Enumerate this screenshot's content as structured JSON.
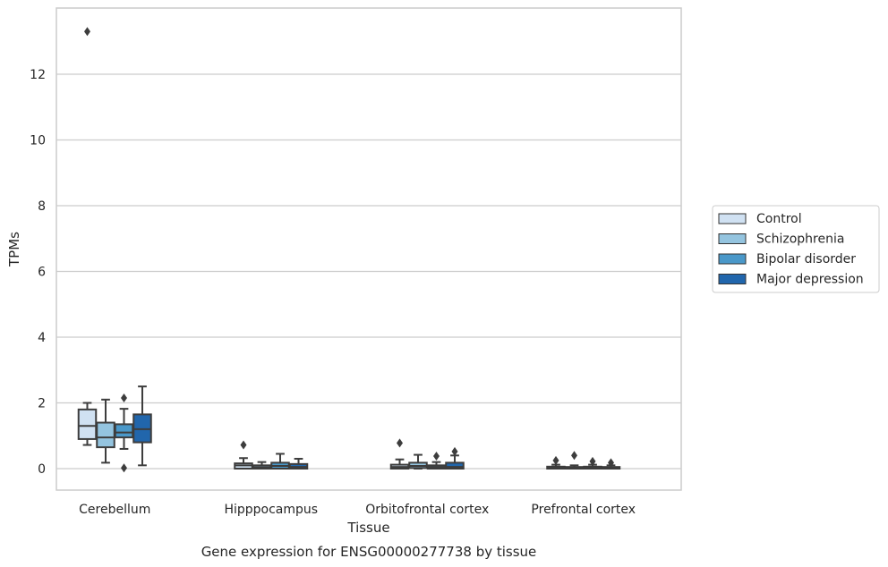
{
  "chart_data": {
    "type": "box",
    "caption": "Gene expression for ENSG00000277738 by tissue",
    "xlabel": "Tissue",
    "ylabel": "TPMs",
    "ylim": [
      -0.65,
      13.9
    ],
    "yticks": [
      0,
      2,
      4,
      6,
      8,
      10,
      12
    ],
    "grid": true,
    "legend_position": "right",
    "categories": [
      "Cerebellum",
      "Hipppocampus",
      "Orbitofrontal cortex",
      "Prefrontal cortex"
    ],
    "series": [
      {
        "name": "Control",
        "color": "#d0e1f2",
        "boxes": [
          {
            "whislo": 0.72,
            "q1": 0.9,
            "med": 1.3,
            "q3": 1.8,
            "whishi": 2.0,
            "fliers": [
              13.3
            ]
          },
          {
            "whislo": 0.0,
            "q1": 0.0,
            "med": 0.1,
            "q3": 0.16,
            "whishi": 0.32,
            "fliers": [
              0.72
            ]
          },
          {
            "whislo": 0.0,
            "q1": 0.0,
            "med": 0.05,
            "q3": 0.12,
            "whishi": 0.28,
            "fliers": [
              0.78
            ]
          },
          {
            "whislo": 0.0,
            "q1": 0.0,
            "med": 0.03,
            "q3": 0.06,
            "whishi": 0.12,
            "fliers": [
              0.25
            ]
          }
        ]
      },
      {
        "name": "Schizophrenia",
        "color": "#94c4df",
        "boxes": [
          {
            "whislo": 0.18,
            "q1": 0.65,
            "med": 0.95,
            "q3": 1.4,
            "whishi": 2.1,
            "fliers": []
          },
          {
            "whislo": 0.0,
            "q1": 0.0,
            "med": 0.04,
            "q3": 0.1,
            "whishi": 0.2,
            "fliers": []
          },
          {
            "whislo": 0.0,
            "q1": 0.02,
            "med": 0.08,
            "q3": 0.18,
            "whishi": 0.42,
            "fliers": []
          },
          {
            "whislo": 0.0,
            "q1": 0.0,
            "med": 0.02,
            "q3": 0.05,
            "whishi": 0.1,
            "fliers": [
              0.4
            ]
          }
        ]
      },
      {
        "name": "Bipolar disorder",
        "color": "#4a98c9",
        "boxes": [
          {
            "whislo": 0.6,
            "q1": 0.95,
            "med": 1.1,
            "q3": 1.35,
            "whishi": 1.82,
            "fliers": [
              2.15,
              0.02
            ]
          },
          {
            "whislo": 0.0,
            "q1": 0.0,
            "med": 0.08,
            "q3": 0.18,
            "whishi": 0.45,
            "fliers": []
          },
          {
            "whislo": 0.0,
            "q1": 0.0,
            "med": 0.05,
            "q3": 0.1,
            "whishi": 0.2,
            "fliers": [
              0.38
            ]
          },
          {
            "whislo": 0.0,
            "q1": 0.0,
            "med": 0.03,
            "q3": 0.06,
            "whishi": 0.12,
            "fliers": [
              0.22
            ]
          }
        ]
      },
      {
        "name": "Major depression",
        "color": "#2166ac",
        "boxes": [
          {
            "whislo": 0.1,
            "q1": 0.8,
            "med": 1.2,
            "q3": 1.65,
            "whishi": 2.5,
            "fliers": []
          },
          {
            "whislo": 0.0,
            "q1": 0.0,
            "med": 0.05,
            "q3": 0.14,
            "whishi": 0.3,
            "fliers": []
          },
          {
            "whislo": 0.0,
            "q1": 0.0,
            "med": 0.05,
            "q3": 0.18,
            "whishi": 0.4,
            "fliers": [
              0.52
            ]
          },
          {
            "whislo": 0.0,
            "q1": 0.0,
            "med": 0.02,
            "q3": 0.05,
            "whishi": 0.1,
            "fliers": [
              0.18
            ]
          }
        ]
      }
    ],
    "style": {
      "edge_color": "#3d3d3d",
      "grid_color": "#cccccc",
      "spine_color": "#cccccc"
    }
  }
}
